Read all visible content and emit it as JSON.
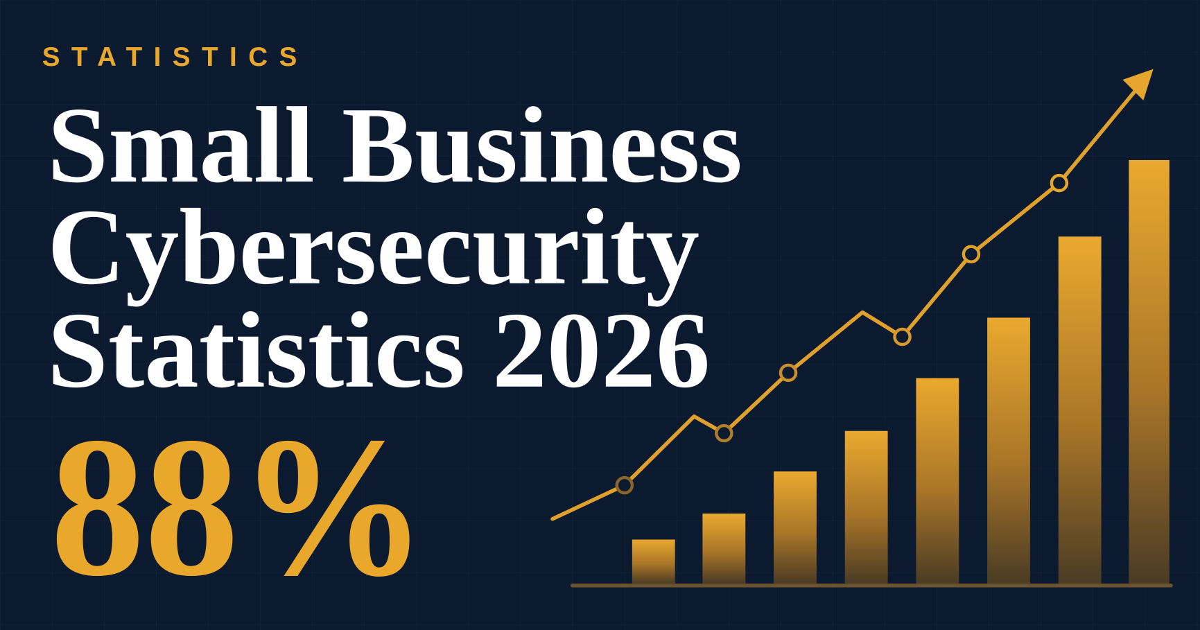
{
  "eyebrow": "STATISTICS",
  "title_lines": [
    "Small Business",
    "Cybersecurity",
    "Statistics 2026"
  ],
  "highlight": "88%"
}
